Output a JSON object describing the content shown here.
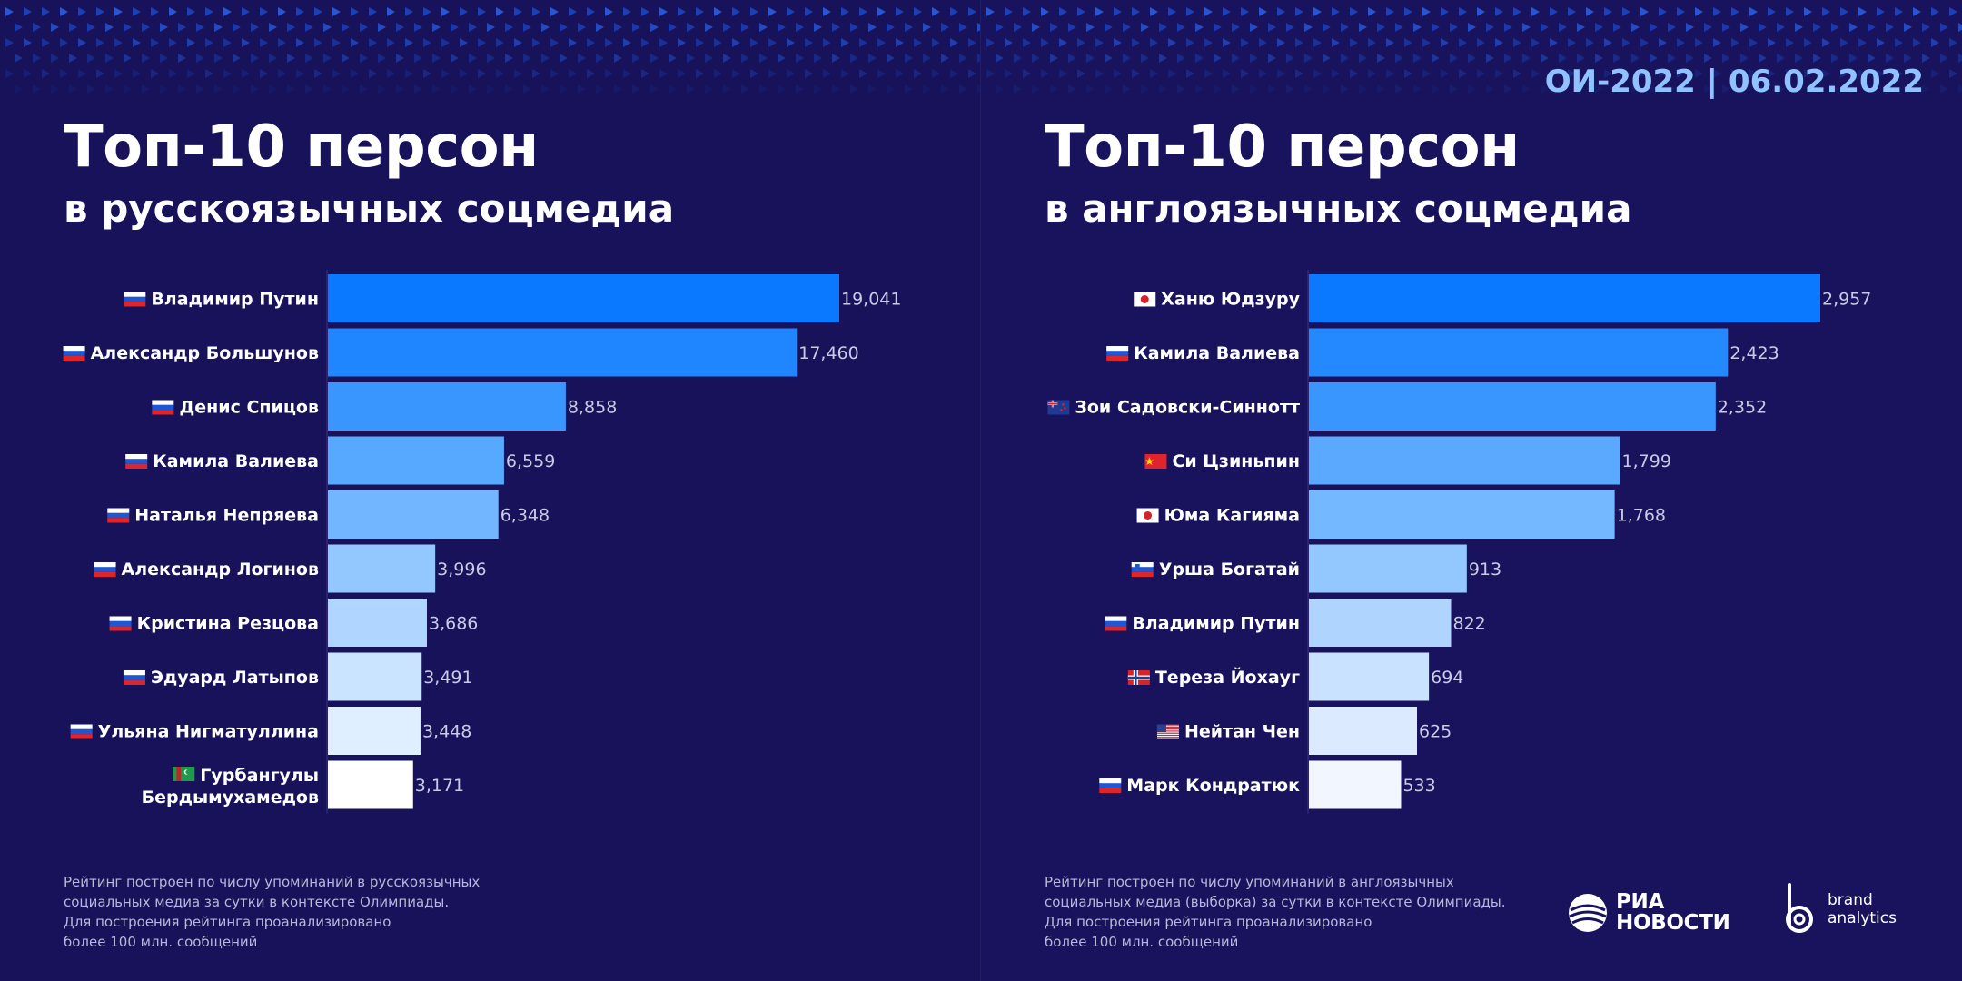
{
  "header": {
    "date_label": "ОИ-2022 | 06.02.2022"
  },
  "left": {
    "title": "Топ-10 персон",
    "subtitle": "в русскоязычных соцмедиа",
    "footnote": [
      "Рейтинг построен по числу упоминаний в русскоязычных",
      "социальных медиа за сутки в контексте Олимпиады.",
      "Для построения рейтинга проанализировано",
      "более 100 млн. сообщений"
    ]
  },
  "right": {
    "title": "Топ-10 персон",
    "subtitle": "в англоязычных соцмедиа",
    "footnote": [
      "Рейтинг построен по числу упоминаний в англоязычных",
      "социальных медиа (выборка) за сутки в контексте Олимпиады.",
      "Для построения рейтинга проанализировано",
      "более 100 млн. сообщений"
    ],
    "logos": {
      "ria": [
        "РИА",
        "НОВОСТИ"
      ],
      "brand_analytics": [
        "brand",
        "analytics"
      ]
    }
  },
  "chart_data": [
    {
      "type": "bar",
      "orientation": "horizontal",
      "title": "Топ-10 персон в русскоязычных соцмедиа",
      "categories": [
        "Владимир Путин",
        "Александр Большунов",
        "Денис Спицов",
        "Камила Валиева",
        "Наталья Непряева",
        "Александр Логинов",
        "Кристина Резцова",
        "Эдуард Латыпов",
        "Ульяна Нигматуллина",
        "Гурбангулы Бердымухамедов"
      ],
      "flags": [
        "ru",
        "ru",
        "ru",
        "ru",
        "ru",
        "ru",
        "ru",
        "ru",
        "ru",
        "tm"
      ],
      "values": [
        19041,
        17460,
        8858,
        6559,
        6348,
        3996,
        3686,
        3491,
        3448,
        3171
      ],
      "value_labels": [
        "19,041",
        "17,460",
        "8,858",
        "6,559",
        "6,348",
        "3,996",
        "3,686",
        "3,491",
        "3,448",
        "3,171"
      ],
      "colors": [
        "#0a78ff",
        "#1f86ff",
        "#3a96ff",
        "#57a8ff",
        "#72b6ff",
        "#93c8ff",
        "#b0d6ff",
        "#cae4ff",
        "#e0efff",
        "#ffffff"
      ],
      "xlim": [
        0,
        19041
      ]
    },
    {
      "type": "bar",
      "orientation": "horizontal",
      "title": "Топ-10 персон в англоязычных соцмедиа",
      "categories": [
        "Ханю Юдзуру",
        "Камила Валиева",
        "Зои Садовски-Синнотт",
        "Си Цзиньпин",
        "Юма Кагияма",
        "Урша Богатай",
        "Владимир Путин",
        "Тереза Йохауг",
        "Нейтан Чен",
        "Марк Кондратюк"
      ],
      "flags": [
        "jp",
        "ru",
        "nz",
        "cn",
        "jp",
        "si",
        "ru",
        "no",
        "us",
        "ru"
      ],
      "values": [
        2957,
        2423,
        2352,
        1799,
        1768,
        913,
        822,
        694,
        625,
        533
      ],
      "value_labels": [
        "2,957",
        "2,423",
        "2,352",
        "1,799",
        "1,768",
        "913",
        "822",
        "694",
        "625",
        "533"
      ],
      "colors": [
        "#0a78ff",
        "#2488ff",
        "#3a96ff",
        "#5aa9ff",
        "#74b8ff",
        "#93c8ff",
        "#afd5ff",
        "#c9e2ff",
        "#dceaff",
        "#f2f6ff"
      ],
      "xlim": [
        0,
        2957
      ]
    }
  ]
}
